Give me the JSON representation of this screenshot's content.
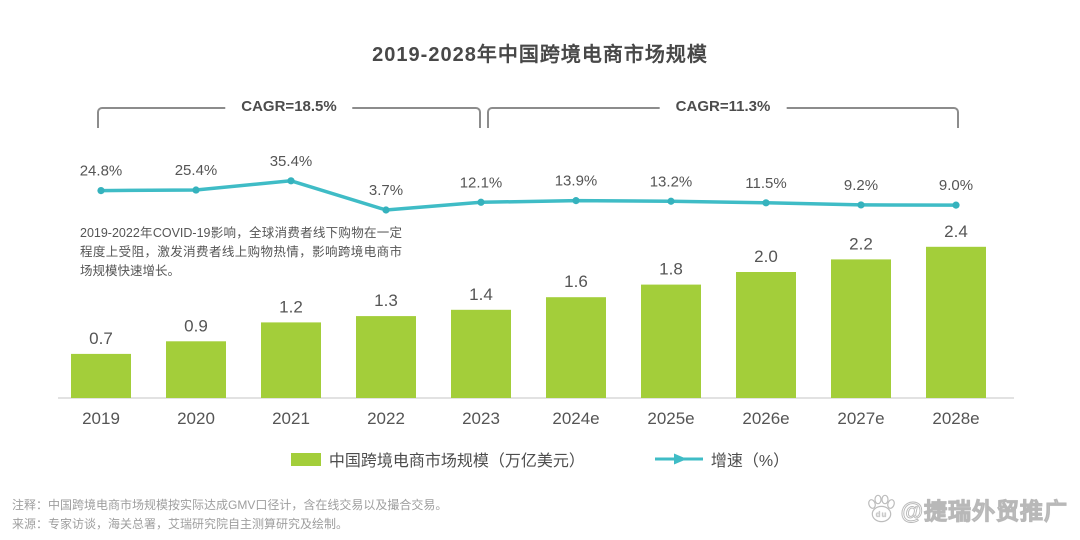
{
  "title": "2019-2028年中国跨境电商市场规模",
  "cagr_left": "CAGR=18.5%",
  "cagr_right": "CAGR=11.3%",
  "annotation": "2019-2022年COVID-19影响，全球消费者线下购物在一定程度上受阻，激发消费者线上购物热情，影响跨境电商市场规模快速增长。",
  "legend": {
    "bars": "中国跨境电商市场规模（万亿美元）",
    "line": "增速（%）"
  },
  "notes": [
    "注释：中国跨境电商市场规模按实际达成GMV口径计，含在线交易以及撮合交易。",
    "来源：专家访谈，海关总署，艾瑞研究院自主测算研究及绘制。"
  ],
  "watermark": "@捷瑞外贸推广",
  "colors": {
    "bar": "#a3ce3a",
    "line": "#3fbcc6",
    "marker": "#35b2bd",
    "label_text": "#555555",
    "axis": "#e2e2e2"
  },
  "chart_data": {
    "type": "bar",
    "title": "2019-2028年中国跨境电商市场规模",
    "categories": [
      "2019",
      "2020",
      "2021",
      "2022",
      "2023",
      "2024e",
      "2025e",
      "2026e",
      "2027e",
      "2028e"
    ],
    "series": [
      {
        "name": "中国跨境电商市场规模（万亿美元）",
        "type": "bar",
        "values": [
          0.7,
          0.9,
          1.2,
          1.3,
          1.4,
          1.6,
          1.8,
          2.0,
          2.2,
          2.4
        ]
      },
      {
        "name": "增速（%）",
        "type": "line",
        "values": [
          24.8,
          25.4,
          35.4,
          3.7,
          12.1,
          13.9,
          13.2,
          11.5,
          9.2,
          9.0
        ]
      }
    ],
    "cagr_annotations": [
      {
        "label": "CAGR=18.5%",
        "span": [
          "2019",
          "2023"
        ]
      },
      {
        "label": "CAGR=11.3%",
        "span": [
          "2023",
          "2028e"
        ]
      }
    ],
    "legend_position": "bottom",
    "grid": false,
    "bar_unit": "万亿美元",
    "line_unit": "%"
  }
}
